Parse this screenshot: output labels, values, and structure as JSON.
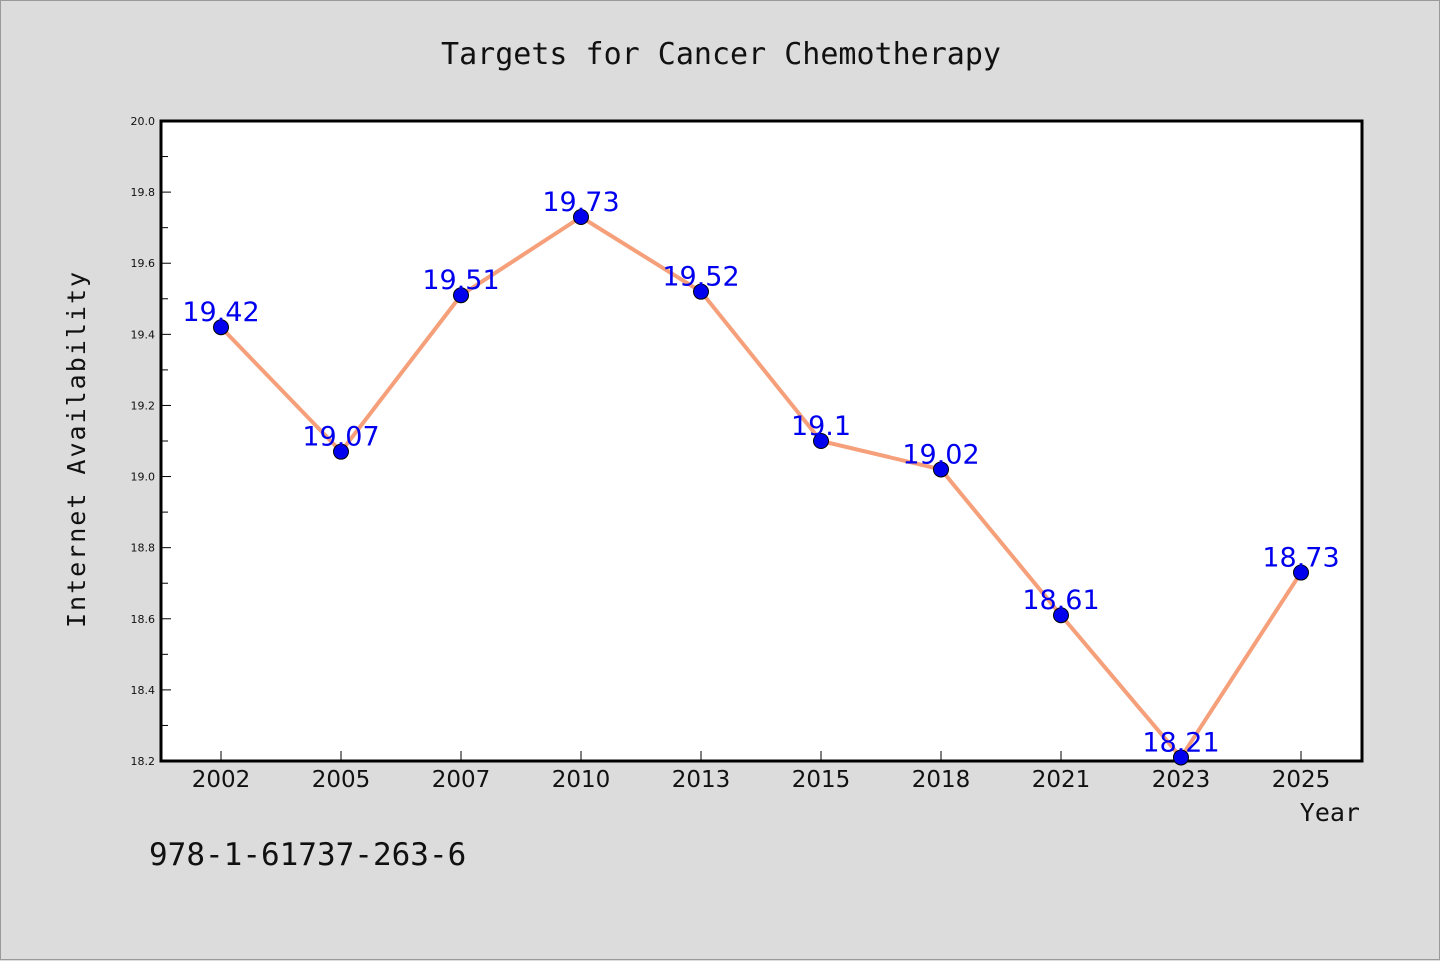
{
  "chart_data": {
    "type": "line",
    "title": "Targets for Cancer Chemotherapy",
    "xlabel": "Year",
    "ylabel": "Internet Availability",
    "categories": [
      "2002",
      "2005",
      "2007",
      "2010",
      "2013",
      "2015",
      "2018",
      "2021",
      "2023",
      "2025"
    ],
    "series": [
      {
        "values": [
          19.42,
          19.07,
          19.51,
          19.73,
          19.52,
          19.1,
          19.02,
          18.61,
          18.21,
          18.73
        ],
        "labels": [
          "19.42",
          "19.07",
          "19.51",
          "19.73",
          "19.52",
          "19.1",
          "19.02",
          "18.61",
          "18.21",
          "18.73"
        ],
        "line_color": "#f5a07a",
        "marker_color": "#0000ee"
      }
    ],
    "ylim": [
      18.2,
      20.0
    ],
    "yticks": [
      "18.2",
      "18.4",
      "18.6",
      "18.8",
      "19.0",
      "19.2",
      "19.4",
      "19.6",
      "19.8",
      "20.0"
    ],
    "grid": false,
    "legend": "none"
  },
  "footer": {
    "isbn": "978-1-61737-263-6"
  },
  "colors": {
    "background": "#dcdcdc",
    "plot_background": "#ffffff",
    "label_color": "#0000ee"
  }
}
